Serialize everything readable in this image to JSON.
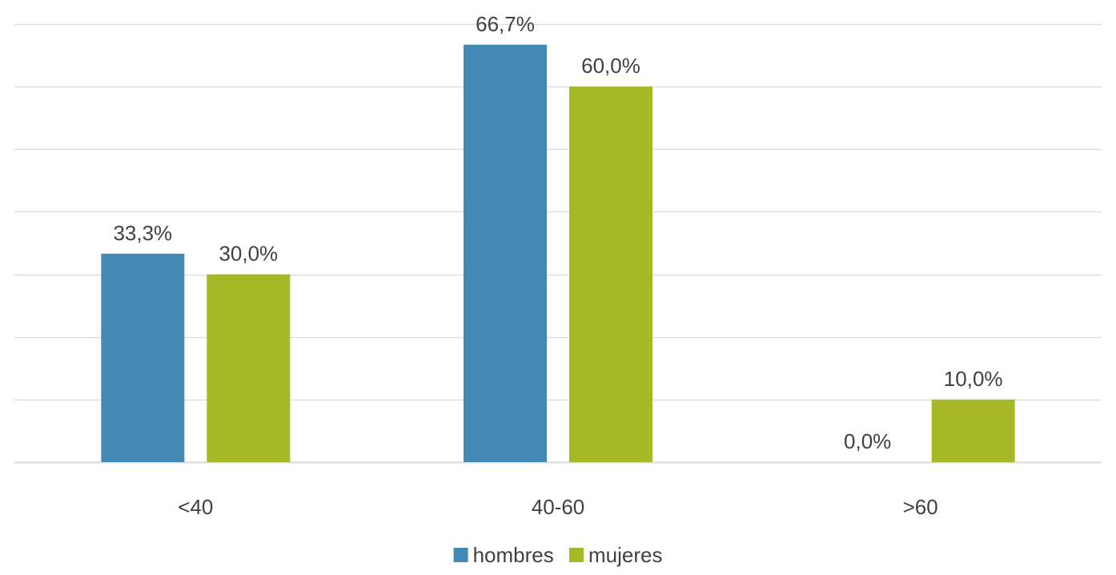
{
  "chart_data": {
    "type": "bar",
    "title": "",
    "xlabel": "",
    "ylabel": "",
    "categories": [
      "<40",
      "40-60",
      ">60"
    ],
    "ylim": [
      0,
      70
    ],
    "y_gridlines": [
      0,
      10,
      20,
      30,
      40,
      50,
      60,
      70
    ],
    "y_axis_labels_visible": false,
    "grid": true,
    "legend_position": "bottom-center",
    "series": [
      {
        "name": "hombres",
        "color": "#4289b5",
        "values": [
          33.3,
          66.7,
          0.0
        ],
        "labels": [
          "33,3%",
          "66,7%",
          "0,0%"
        ]
      },
      {
        "name": "mujeres",
        "color": "#a7b827",
        "values": [
          30.0,
          60.0,
          10.0
        ],
        "labels": [
          "30,0%",
          "60,0%",
          "10,0%"
        ]
      }
    ]
  }
}
